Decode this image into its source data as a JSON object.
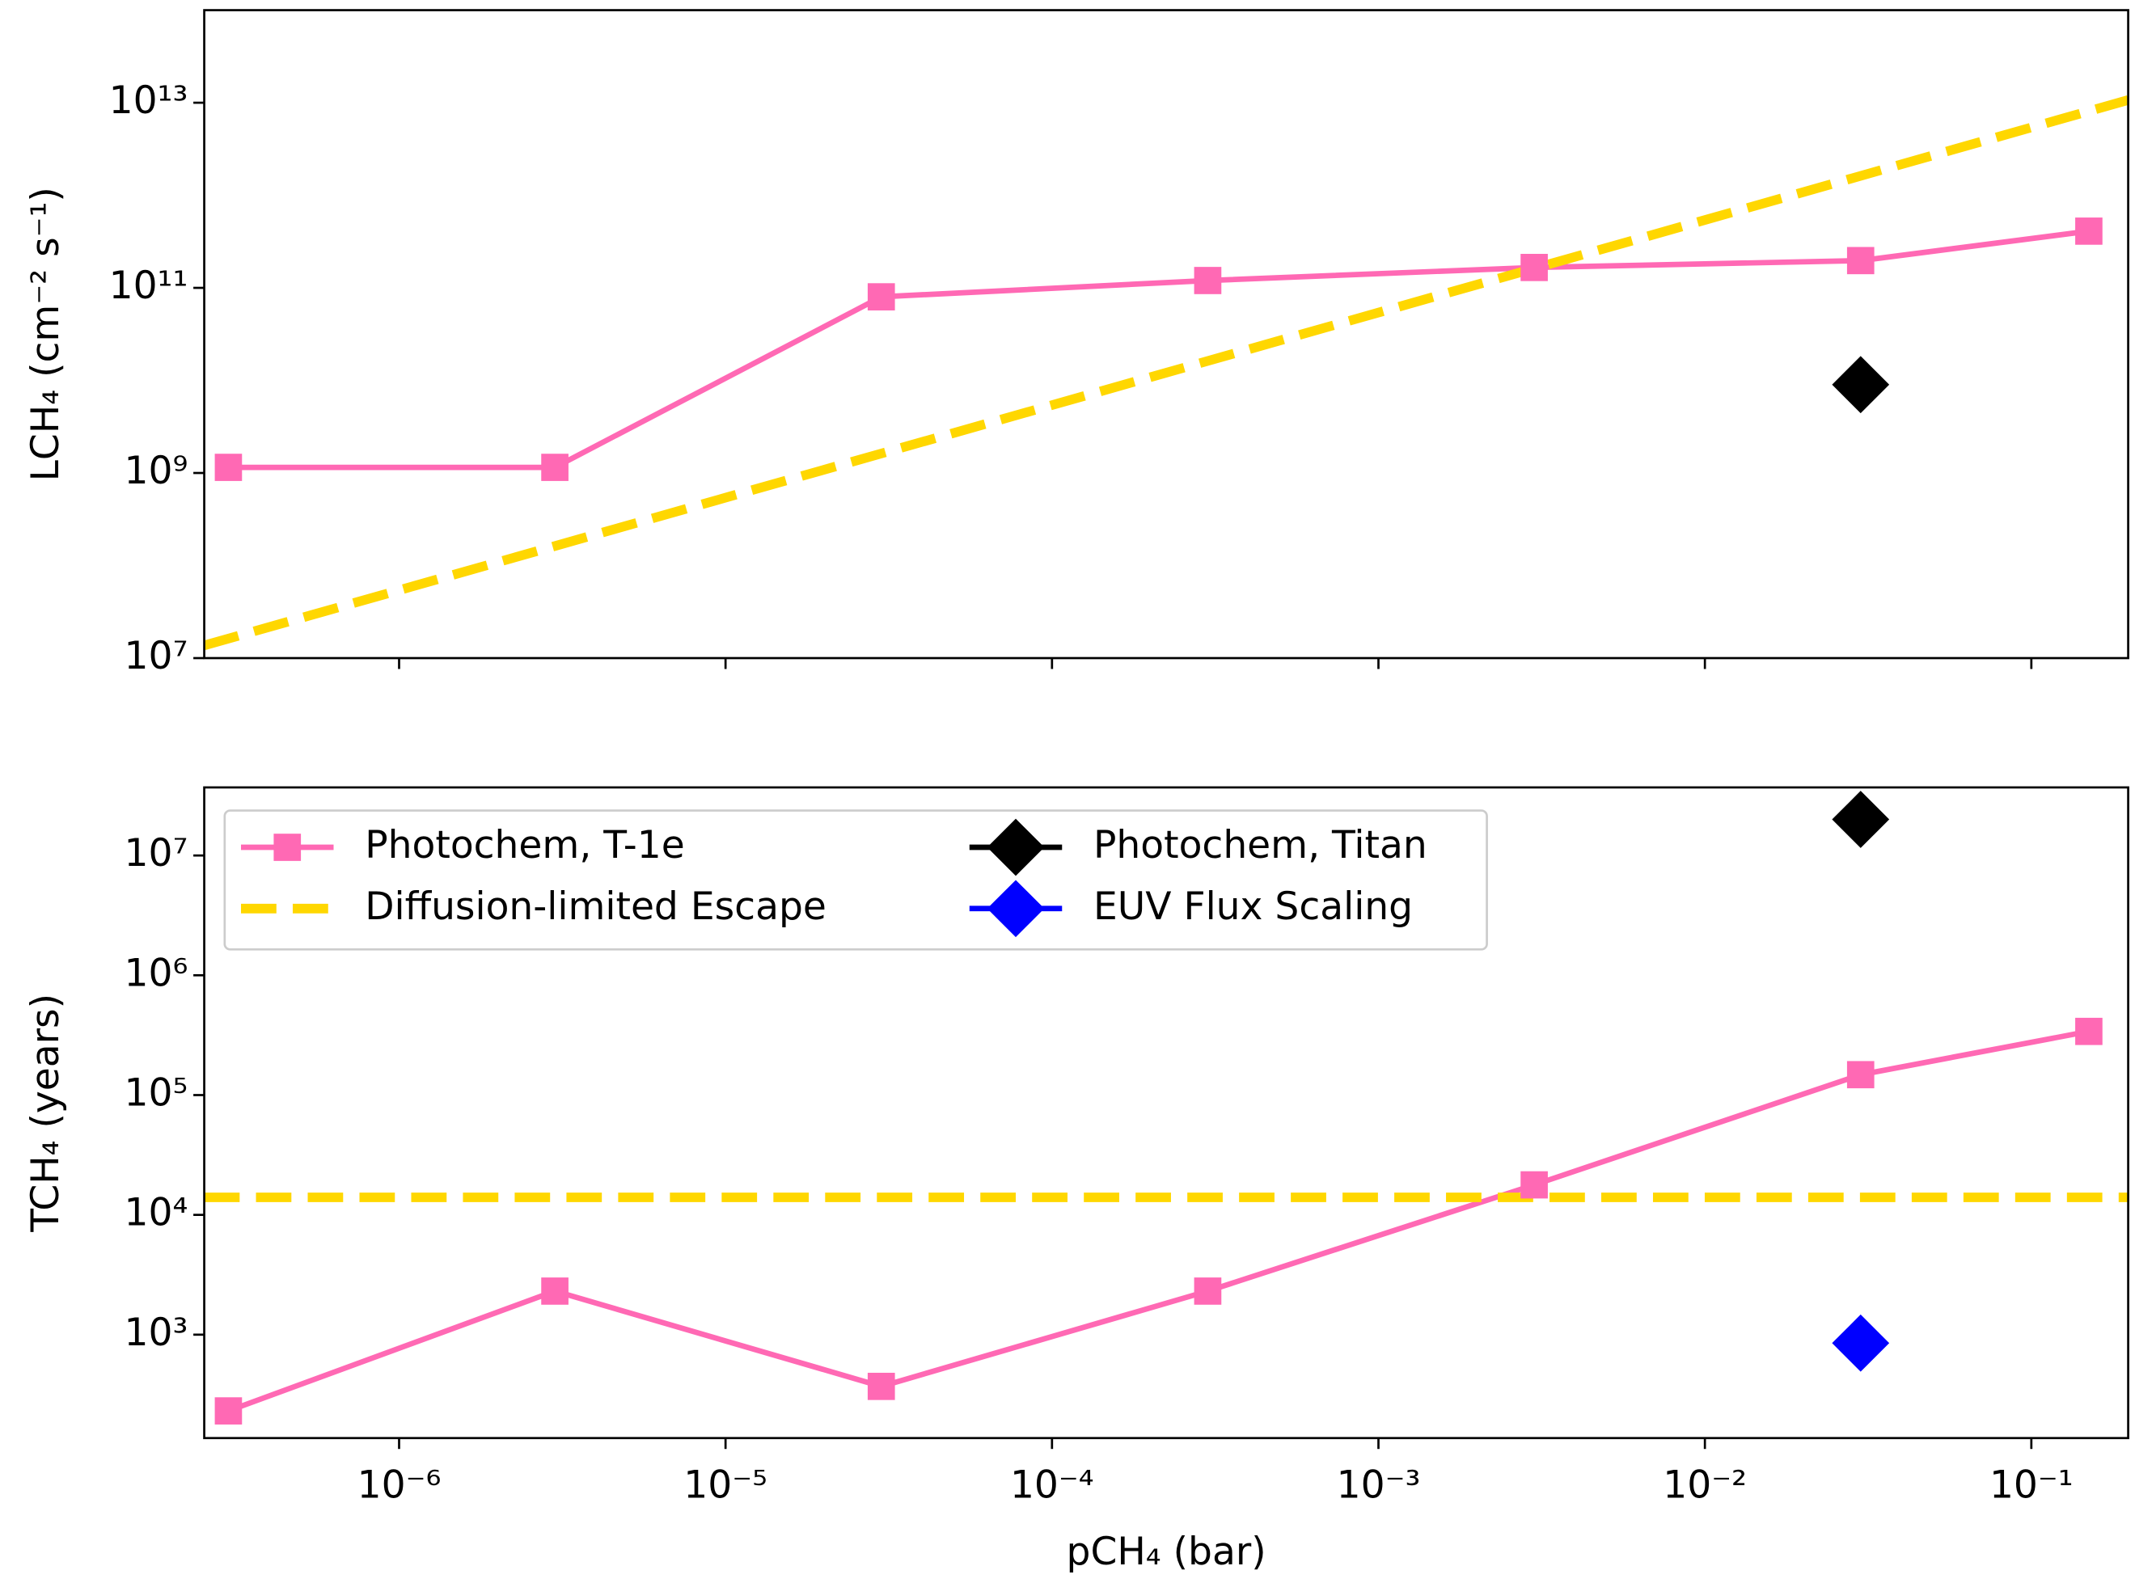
{
  "chart_data": [
    {
      "type": "line",
      "xscale": "log",
      "yscale": "log",
      "ylabel": "LCH₄ (cm⁻² s⁻¹)",
      "xlim": [
        2.53e-07,
        0.198
      ],
      "xticks": [
        1e-06,
        1e-05,
        0.0001,
        0.001,
        0.01,
        0.1
      ],
      "ylim": [
        10000000.0,
        100000000000000.0
      ],
      "yticks": [
        {
          "value": 10000000.0,
          "label": "10⁷"
        },
        {
          "value": 1000000000.0,
          "label": "10⁹"
        },
        {
          "value": 100000000000.0,
          "label": "10¹¹"
        },
        {
          "value": 10000000000000.0,
          "label": "10¹³"
        }
      ],
      "series": [
        {
          "color": "#ff69b4",
          "linestyle": "solid",
          "marker": "square",
          "x": [
            3e-07,
            3e-06,
            3e-05,
            0.0003,
            0.003,
            0.03,
            0.15
          ],
          "values": [
            1150000000.0,
            1150000000.0,
            80000000000.0,
            120000000000.0,
            166000000000.0,
            197000000000.0,
            410000000000.0
          ]
        },
        {
          "color": "#ffd700",
          "linestyle": "dashed",
          "marker": "none",
          "x": [
            2.53e-07,
            0.198
          ],
          "values": [
            13700000.0,
            10700000000000.0
          ]
        },
        {
          "color": "#000000",
          "linestyle": "none",
          "marker": "diamond",
          "x": [
            0.03
          ],
          "values": [
            9000000000.0
          ]
        }
      ]
    },
    {
      "type": "line",
      "xscale": "log",
      "yscale": "log",
      "ylabel": "TCH₄ (years)",
      "xlabel": "pCH₄ (bar)",
      "xlim": [
        2.53e-07,
        0.198
      ],
      "xticks": [
        {
          "value": 1e-06,
          "label": "10⁻⁶"
        },
        {
          "value": 1e-05,
          "label": "10⁻⁵"
        },
        {
          "value": 0.0001,
          "label": "10⁻⁴"
        },
        {
          "value": 0.001,
          "label": "10⁻³"
        },
        {
          "value": 0.01,
          "label": "10⁻²"
        },
        {
          "value": 0.1,
          "label": "10⁻¹"
        }
      ],
      "ylim": [
        137,
        37000000.0
      ],
      "yticks": [
        {
          "value": 1000.0,
          "label": "10³"
        },
        {
          "value": 10000.0,
          "label": "10⁴"
        },
        {
          "value": 100000.0,
          "label": "10⁵"
        },
        {
          "value": 1000000.0,
          "label": "10⁶"
        },
        {
          "value": 10000000.0,
          "label": "10⁷"
        }
      ],
      "legend": "upper left",
      "series": [
        {
          "name": "Photochem, T-1e",
          "color": "#ff69b4",
          "linestyle": "solid",
          "marker": "square",
          "x": [
            3e-07,
            3e-06,
            3e-05,
            0.0003,
            0.003,
            0.03,
            0.15
          ],
          "values": [
            231,
            2310,
            370,
            2310,
            17800,
            148000,
            340000
          ]
        },
        {
          "name": "Diffusion-limited Escape",
          "color": "#ffd700",
          "linestyle": "dashed",
          "marker": "none",
          "x": [
            2.53e-07,
            0.198
          ],
          "values": [
            14000,
            14000
          ]
        },
        {
          "name": "Photochem, Titan",
          "color": "#000000",
          "linestyle": "none",
          "marker": "diamond",
          "x": [
            0.03
          ],
          "values": [
            20000000.0
          ]
        },
        {
          "name": "EUV Flux Scaling",
          "color": "#0000ff",
          "linestyle": "none",
          "marker": "diamond",
          "x": [
            0.03
          ],
          "values": [
            850
          ]
        }
      ]
    }
  ]
}
